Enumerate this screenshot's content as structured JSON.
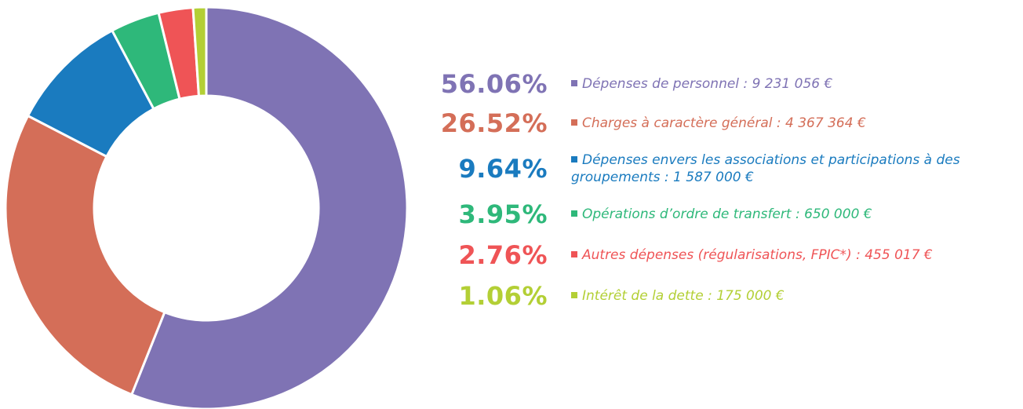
{
  "chart_data": {
    "type": "donut",
    "categories": [
      "Dépenses de personnel : 9 231 056 €",
      "Charges à caractère général : 4 367 364 €",
      "Dépenses envers les associations et participations à des groupements : 1 587 000 €",
      "Opérations d’ordre de transfert : 650 000 €",
      "Autres dépenses (régularisations, FPIC*) : 455 017 €",
      "Intérêt de la dette : 175 000 €"
    ],
    "values": [
      56.06,
      26.52,
      9.64,
      3.95,
      2.76,
      1.06
    ],
    "value_labels": [
      "56.06%",
      "26.52%",
      "9.64%",
      "3.95%",
      "2.76%",
      "1.06%"
    ],
    "colors": [
      "#7f73b4",
      "#d46e58",
      "#1a7bbf",
      "#2eb87a",
      "#ef5456",
      "#b3cf35"
    ]
  }
}
